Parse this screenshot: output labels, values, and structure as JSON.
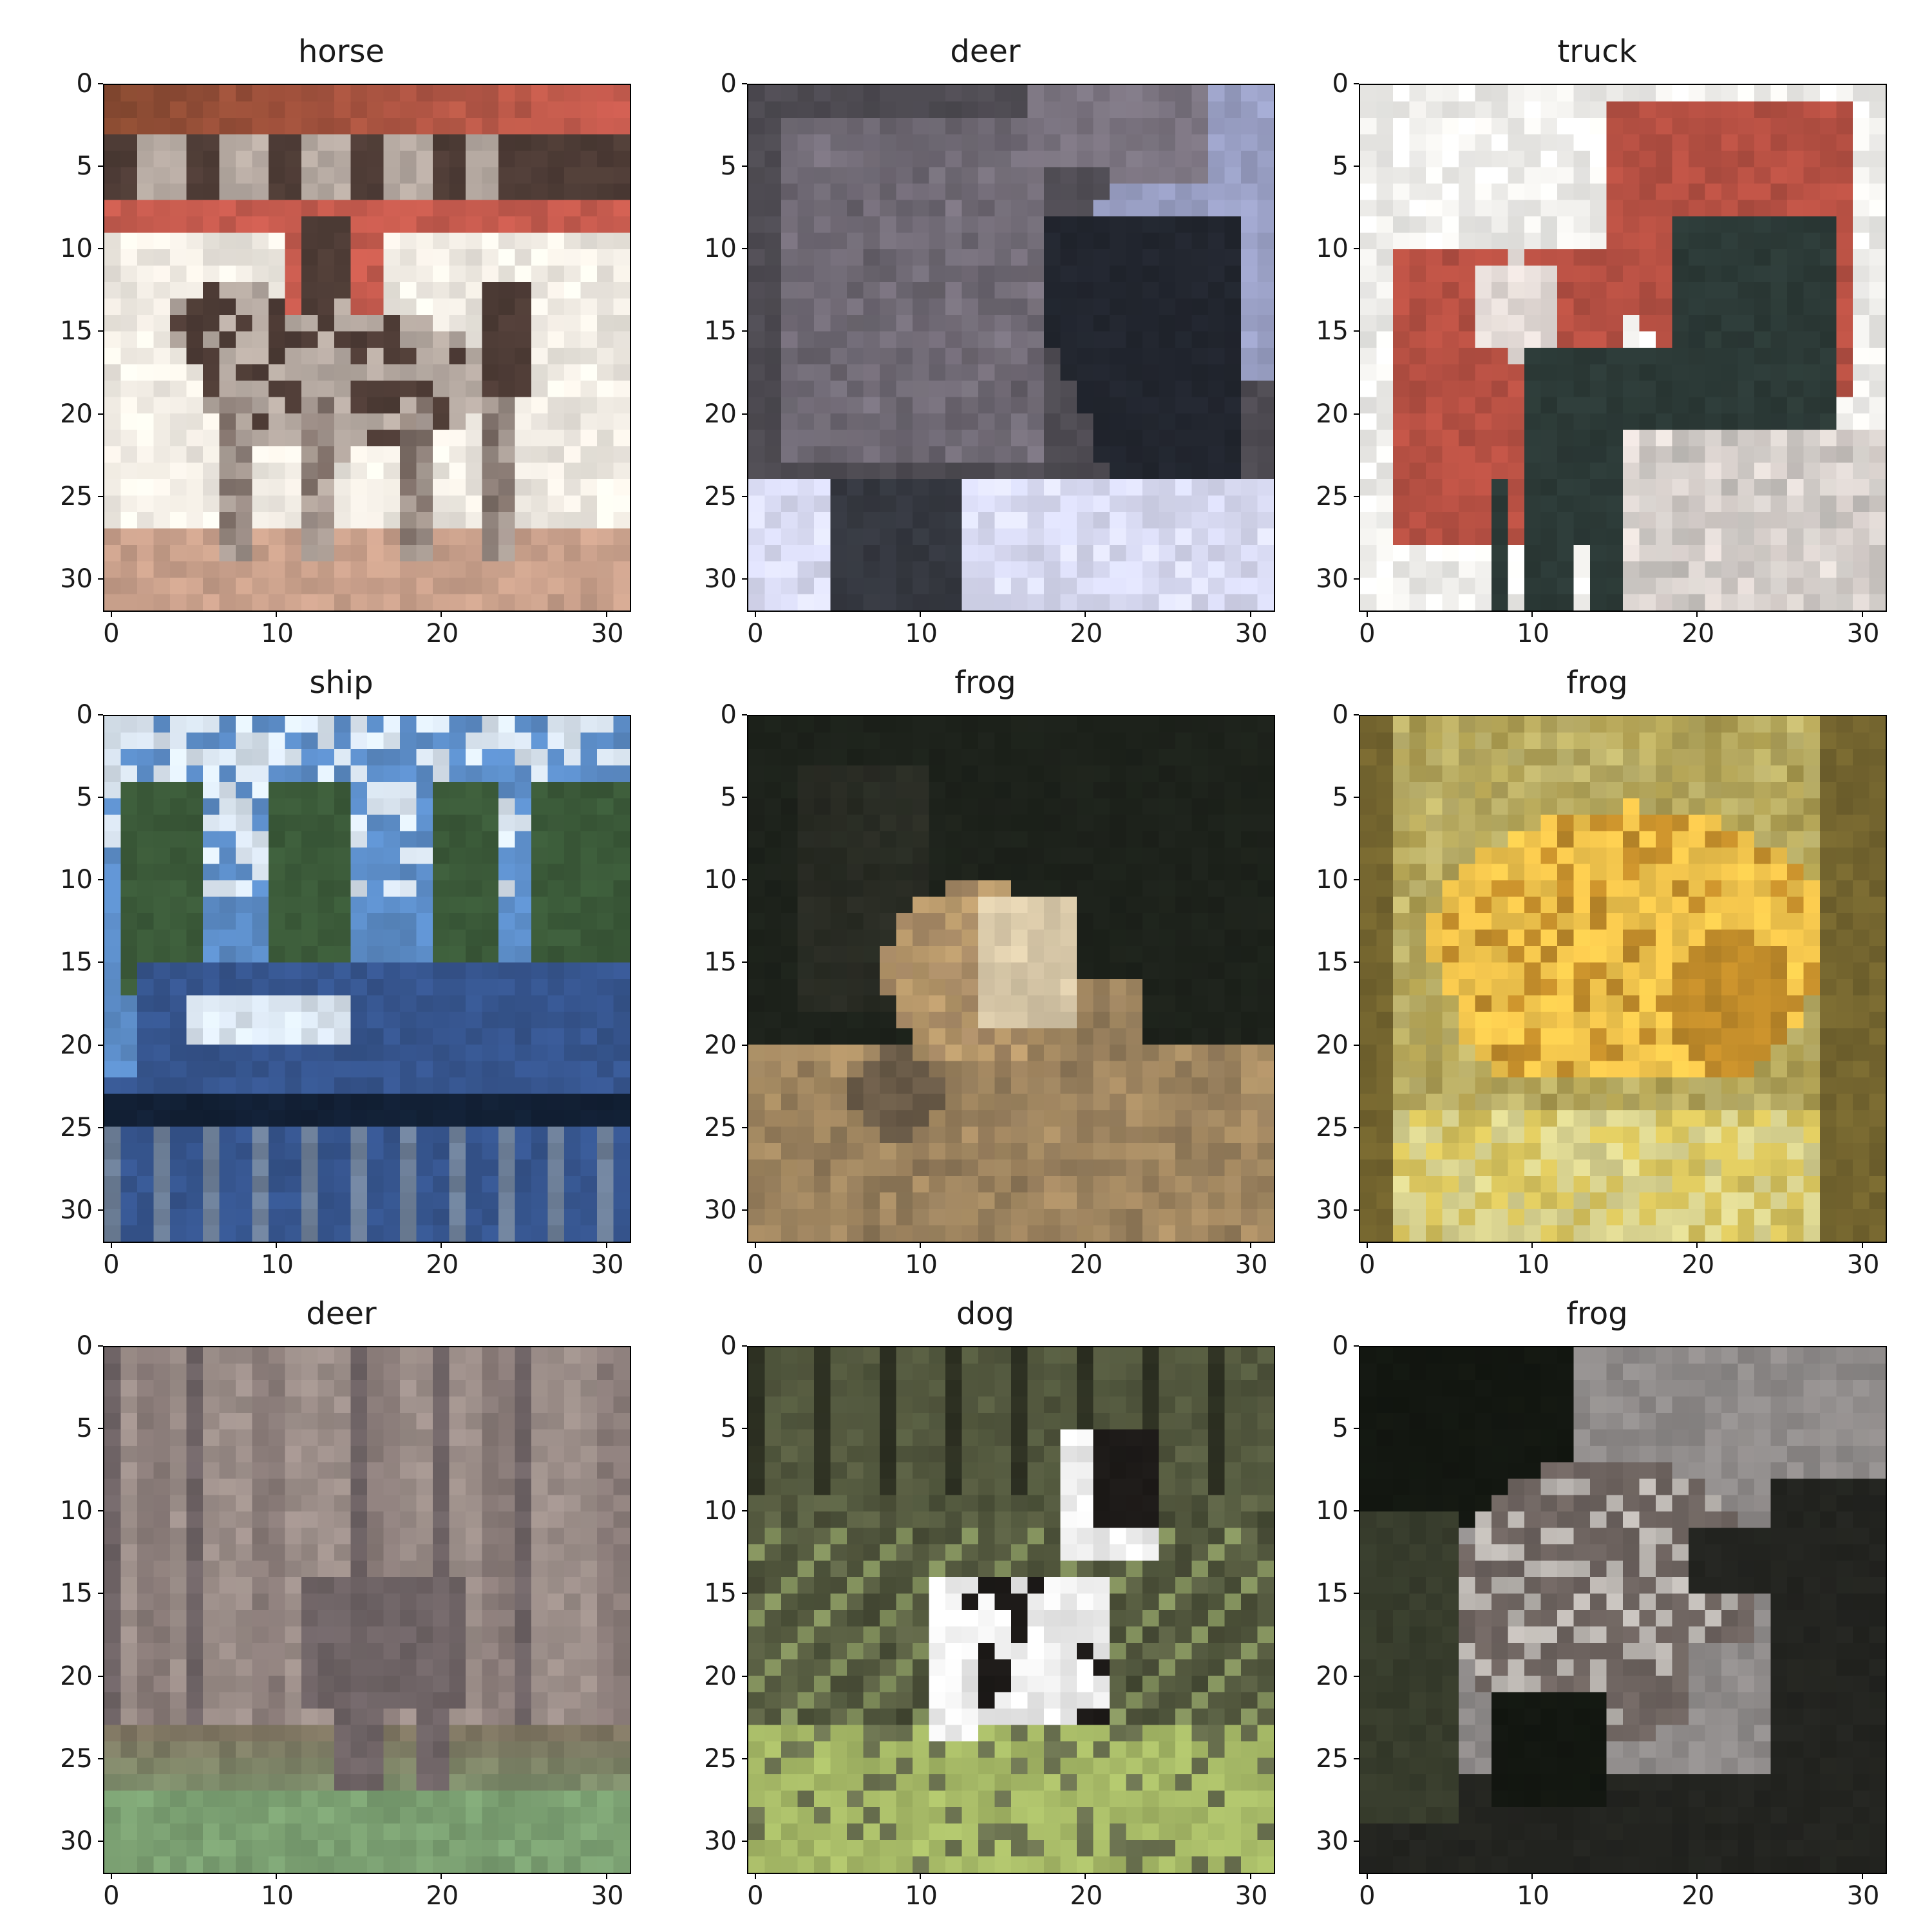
{
  "figure": {
    "tick_values": [
      "0",
      "5",
      "10",
      "15",
      "20",
      "25",
      "30"
    ],
    "x_tick_values": [
      "0",
      "10",
      "20",
      "30"
    ]
  },
  "panels": [
    {
      "title": "horse",
      "palette": [
        "#8a4b32",
        "#c85c4f",
        "#e9e1d6",
        "#b6aaa2",
        "#4e3c36",
        "#f0ebe3",
        "#c9a08b"
      ],
      "subject": "horse"
    },
    {
      "title": "deer",
      "palette": [
        "#4e4b52",
        "#9aa0c5",
        "#22262f",
        "#7b7480",
        "#d9dbf3",
        "#353840"
      ],
      "subject": "deer"
    },
    {
      "title": "truck",
      "palette": [
        "#f2f1ee",
        "#b65043",
        "#2c3a37",
        "#c98276",
        "#e6ddd9",
        "#5b6662"
      ],
      "subject": "truck"
    },
    {
      "title": "ship",
      "palette": [
        "#5c8dc8",
        "#d9e4ef",
        "#3b5a39",
        "#36558e",
        "#122035",
        "#6d7f98",
        "#a8b0be"
      ],
      "subject": "ship"
    },
    {
      "title": "frog",
      "palette": [
        "#1d221b",
        "#b8996b",
        "#a68965",
        "#d9c9a9",
        "#6a5b48",
        "#3b3a31"
      ],
      "subject": "frog-dark"
    },
    {
      "title": "frog",
      "palette": [
        "#aa9a4d",
        "#f2c54d",
        "#c08b2a",
        "#d8d28f",
        "#74652f",
        "#d7c35d"
      ],
      "subject": "frog-yellow"
    },
    {
      "title": "deer",
      "palette": [
        "#8a7c79",
        "#9d8f8a",
        "#6f6466",
        "#7f7662",
        "#7ba072",
        "#b19e98"
      ],
      "subject": "deer-forest"
    },
    {
      "title": "dog",
      "palette": [
        "#2d3022",
        "#6c7351",
        "#a7ba67",
        "#f0f0f0",
        "#1d1a18",
        "#6a4f3a",
        "#85935f"
      ],
      "subject": "dog"
    },
    {
      "title": "frog",
      "palette": [
        "#131711",
        "#8f8b8a",
        "#6e6460",
        "#bcb7b2",
        "#373c2c",
        "#232420"
      ],
      "subject": "frog-gray"
    }
  ]
}
